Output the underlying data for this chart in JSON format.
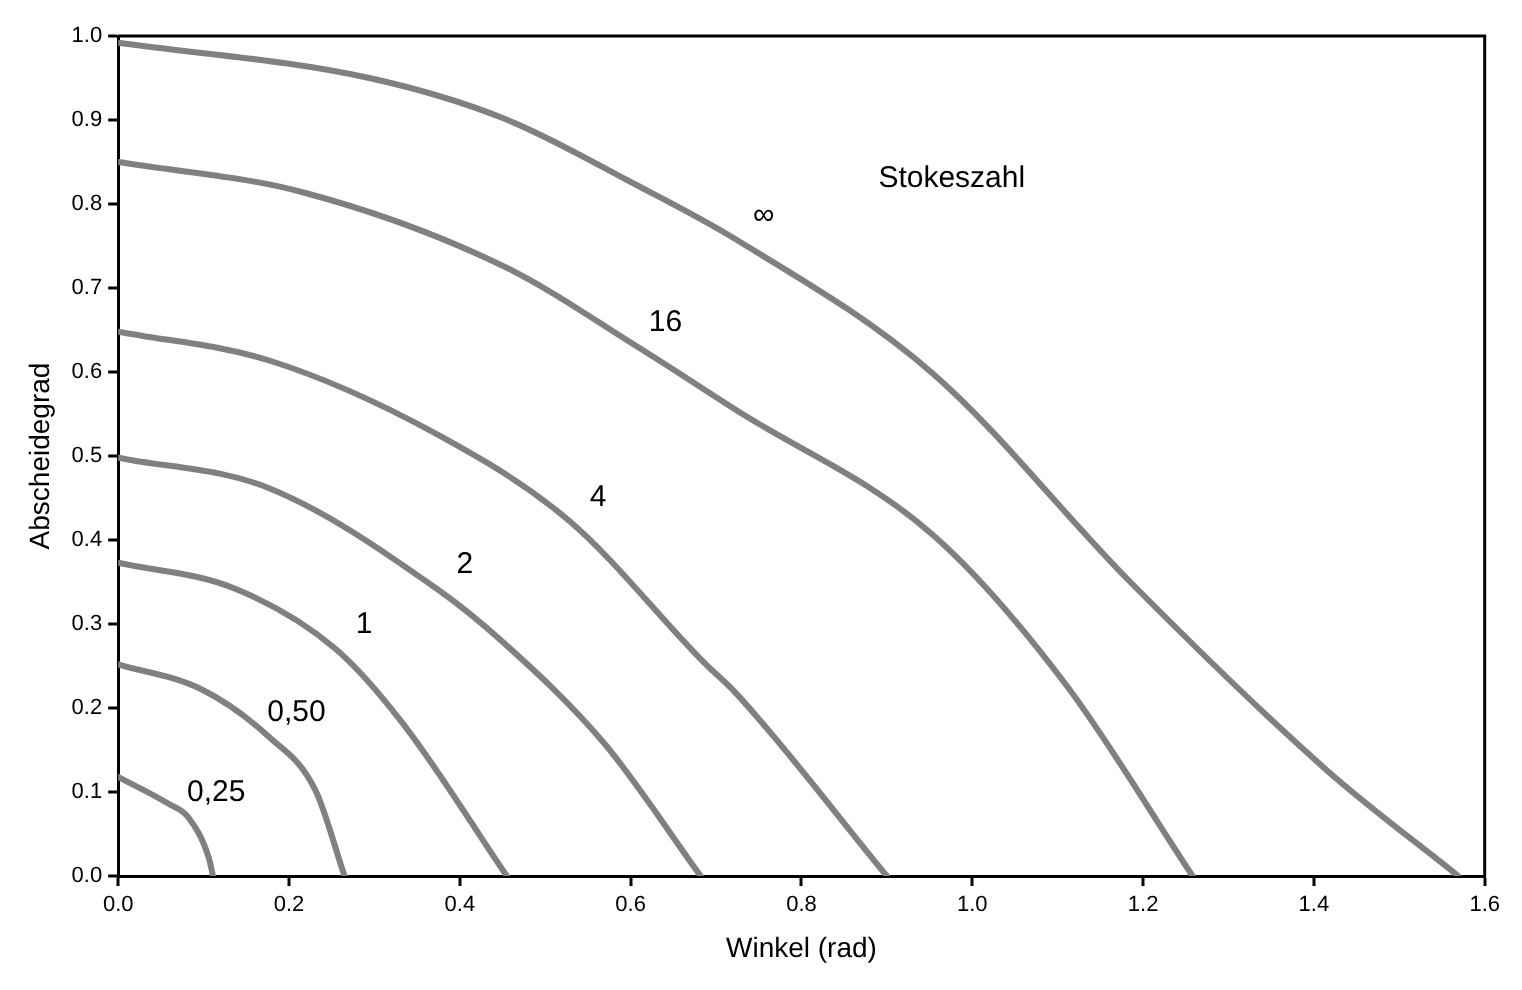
{
  "chart_data": {
    "type": "line",
    "xlabel": "Winkel (rad)",
    "ylabel": "Abscheidegrad",
    "xlim": [
      0,
      1.6
    ],
    "ylim": [
      0,
      1.0
    ],
    "xticks": [
      {
        "value": 0,
        "label": "0.0"
      },
      {
        "value": 0.2,
        "label": "0.2"
      },
      {
        "value": 0.4,
        "label": "0.4"
      },
      {
        "value": 0.6,
        "label": "0.6"
      },
      {
        "value": 0.8,
        "label": "0.8"
      },
      {
        "value": 1.0,
        "label": "1.0"
      },
      {
        "value": 1.2,
        "label": "1.2"
      },
      {
        "value": 1.4,
        "label": "1.4"
      },
      {
        "value": 1.6,
        "label": "1.6"
      }
    ],
    "yticks": [
      {
        "value": 0,
        "label": "0.0"
      },
      {
        "value": 0.1,
        "label": "0.1"
      },
      {
        "value": 0.2,
        "label": "0.2"
      },
      {
        "value": 0.3,
        "label": "0.3"
      },
      {
        "value": 0.4,
        "label": "0.4"
      },
      {
        "value": 0.5,
        "label": "0.5"
      },
      {
        "value": 0.6,
        "label": "0.6"
      },
      {
        "value": 0.7,
        "label": "0.7"
      },
      {
        "value": 0.8,
        "label": "0.8"
      },
      {
        "value": 0.9,
        "label": "0.9"
      },
      {
        "value": 1.0,
        "label": "1.0"
      }
    ],
    "grid": false,
    "legend": false,
    "marker": "none",
    "line_style": "solid",
    "series": [
      {
        "name": "0,25",
        "color": "#808080",
        "x": [
          0,
          0.059,
          0.082,
          0.106,
          0.111
        ],
        "values": [
          0.118,
          0.086,
          0.07,
          0.022,
          0
        ]
      },
      {
        "name": "0,50",
        "color": "#808080",
        "x": [
          0,
          0.098,
          0.176,
          0.231,
          0.265
        ],
        "values": [
          0.252,
          0.222,
          0.166,
          0.102,
          0
        ]
      },
      {
        "name": "1",
        "color": "#808080",
        "x": [
          0,
          0.137,
          0.255,
          0.333,
          0.455
        ],
        "values": [
          0.373,
          0.342,
          0.27,
          0.182,
          0
        ]
      },
      {
        "name": "2",
        "color": "#808080",
        "x": [
          0,
          0.176,
          0.373,
          0.451,
          0.569,
          0.682
        ],
        "values": [
          0.498,
          0.462,
          0.342,
          0.278,
          0.158,
          0
        ]
      },
      {
        "name": "4",
        "color": "#808080",
        "x": [
          0,
          0.176,
          0.373,
          0.529,
          0.686,
          0.723,
          0.9
        ],
        "values": [
          0.648,
          0.614,
          0.526,
          0.422,
          0.254,
          0.218,
          0
        ]
      },
      {
        "name": "16",
        "color": "#808080",
        "x": [
          0,
          0.216,
          0.451,
          0.608,
          0.723,
          0.954,
          1.108,
          1.258
        ],
        "values": [
          0.85,
          0.814,
          0.726,
          0.63,
          0.555,
          0.406,
          0.23,
          0
        ]
      },
      {
        "name": "∞",
        "color": "#808080",
        "x": [
          0,
          0.294,
          0.451,
          0.608,
          0.723,
          0.954,
          1.185,
          1.415,
          1.569
        ],
        "values": [
          0.992,
          0.95,
          0.902,
          0.822,
          0.758,
          0.598,
          0.35,
          0.126,
          0
        ]
      }
    ],
    "annotations": [
      "Stokeszahl"
    ]
  }
}
